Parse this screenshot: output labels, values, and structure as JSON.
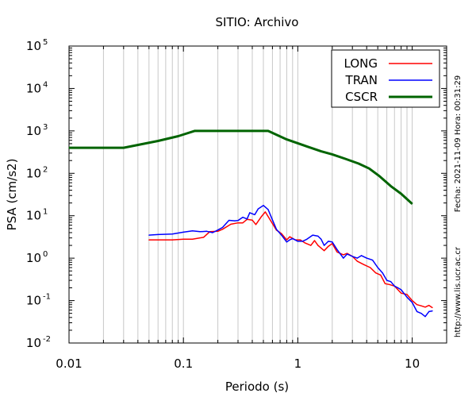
{
  "chart_data": {
    "type": "line",
    "title": "SITIO: Archivo",
    "xlabel": "Periodo (s)",
    "ylabel": "PSA (cm/s2)",
    "xscale": "log",
    "yscale": "log",
    "xlim": [
      0.01,
      20
    ],
    "ylim": [
      0.01,
      100000
    ],
    "x_tick_labels": [
      {
        "value": 0.01,
        "label": "0.01"
      },
      {
        "value": 0.1,
        "label": "0.1"
      },
      {
        "value": 1,
        "label": "1"
      },
      {
        "value": 10,
        "label": "10"
      }
    ],
    "y_tick_labels": [
      {
        "value": 0.01,
        "base": "10",
        "exp": "-2"
      },
      {
        "value": 0.1,
        "base": "10",
        "exp": "-1"
      },
      {
        "value": 1,
        "base": "10",
        "exp": "0"
      },
      {
        "value": 10,
        "base": "10",
        "exp": "1"
      },
      {
        "value": 100,
        "base": "10",
        "exp": "2"
      },
      {
        "value": 1000,
        "base": "10",
        "exp": "3"
      },
      {
        "value": 10000,
        "base": "10",
        "exp": "4"
      },
      {
        "value": 100000,
        "base": "10",
        "exp": "5"
      }
    ],
    "grid": true,
    "legend_position": "top-right",
    "side_text": "Fecha: 2021-11-09  Hora: 00:31:29",
    "url_text": "http://www.lis.ucr.ac.cr",
    "series": [
      {
        "name": "LONG",
        "color": "#ff0000",
        "stroke": 1.5,
        "points": [
          [
            0.05,
            2.7
          ],
          [
            0.06,
            2.7
          ],
          [
            0.08,
            2.7
          ],
          [
            0.1,
            2.8
          ],
          [
            0.12,
            2.8
          ],
          [
            0.15,
            3.1
          ],
          [
            0.17,
            4.2
          ],
          [
            0.2,
            4.3
          ],
          [
            0.22,
            4.8
          ],
          [
            0.26,
            6.3
          ],
          [
            0.3,
            6.8
          ],
          [
            0.33,
            6.8
          ],
          [
            0.36,
            8.2
          ],
          [
            0.4,
            7.9
          ],
          [
            0.43,
            6.2
          ],
          [
            0.48,
            9.5
          ],
          [
            0.52,
            12.3
          ],
          [
            0.58,
            7.6
          ],
          [
            0.65,
            4.6
          ],
          [
            0.72,
            3.8
          ],
          [
            0.8,
            2.7
          ],
          [
            0.85,
            3.2
          ],
          [
            0.95,
            2.7
          ],
          [
            1.05,
            2.7
          ],
          [
            1.15,
            2.3
          ],
          [
            1.3,
            2.0
          ],
          [
            1.4,
            2.6
          ],
          [
            1.5,
            2.0
          ],
          [
            1.7,
            1.5
          ],
          [
            1.85,
            1.9
          ],
          [
            2.0,
            2.2
          ],
          [
            2.2,
            1.4
          ],
          [
            2.5,
            1.2
          ],
          [
            2.7,
            1.3
          ],
          [
            3.0,
            1.1
          ],
          [
            3.3,
            0.85
          ],
          [
            3.8,
            0.7
          ],
          [
            4.3,
            0.6
          ],
          [
            4.8,
            0.45
          ],
          [
            5.3,
            0.4
          ],
          [
            5.8,
            0.25
          ],
          [
            6.3,
            0.24
          ],
          [
            7.0,
            0.22
          ],
          [
            8.0,
            0.15
          ],
          [
            9.0,
            0.14
          ],
          [
            10.0,
            0.1
          ],
          [
            11.0,
            0.08
          ],
          [
            12.0,
            0.075
          ],
          [
            13.0,
            0.07
          ],
          [
            14.0,
            0.077
          ],
          [
            15.0,
            0.068
          ]
        ]
      },
      {
        "name": "TRAN",
        "color": "#0000ff",
        "stroke": 1.5,
        "points": [
          [
            0.05,
            3.5
          ],
          [
            0.06,
            3.6
          ],
          [
            0.08,
            3.7
          ],
          [
            0.1,
            4.1
          ],
          [
            0.12,
            4.4
          ],
          [
            0.14,
            4.2
          ],
          [
            0.16,
            4.3
          ],
          [
            0.18,
            4.0
          ],
          [
            0.2,
            4.6
          ],
          [
            0.22,
            5.3
          ],
          [
            0.25,
            7.8
          ],
          [
            0.28,
            7.6
          ],
          [
            0.3,
            7.7
          ],
          [
            0.33,
            9.2
          ],
          [
            0.36,
            8.4
          ],
          [
            0.38,
            11.8
          ],
          [
            0.42,
            10.6
          ],
          [
            0.45,
            14.5
          ],
          [
            0.5,
            17.5
          ],
          [
            0.55,
            14.0
          ],
          [
            0.6,
            8.0
          ],
          [
            0.65,
            4.8
          ],
          [
            0.72,
            3.5
          ],
          [
            0.8,
            2.4
          ],
          [
            0.85,
            2.7
          ],
          [
            0.9,
            2.9
          ],
          [
            1.0,
            2.5
          ],
          [
            1.1,
            2.5
          ],
          [
            1.2,
            2.8
          ],
          [
            1.35,
            3.5
          ],
          [
            1.5,
            3.3
          ],
          [
            1.6,
            2.8
          ],
          [
            1.7,
            2.0
          ],
          [
            1.85,
            2.5
          ],
          [
            2.0,
            2.4
          ],
          [
            2.2,
            1.6
          ],
          [
            2.5,
            1.0
          ],
          [
            2.7,
            1.25
          ],
          [
            3.0,
            1.1
          ],
          [
            3.3,
            1.0
          ],
          [
            3.6,
            1.15
          ],
          [
            4.0,
            1.0
          ],
          [
            4.5,
            0.9
          ],
          [
            5.0,
            0.6
          ],
          [
            5.5,
            0.45
          ],
          [
            6.0,
            0.3
          ],
          [
            6.5,
            0.28
          ],
          [
            7.0,
            0.22
          ],
          [
            7.5,
            0.2
          ],
          [
            8.0,
            0.18
          ],
          [
            9.0,
            0.12
          ],
          [
            10.0,
            0.09
          ],
          [
            11.0,
            0.055
          ],
          [
            12.0,
            0.05
          ],
          [
            13.0,
            0.042
          ],
          [
            14.0,
            0.055
          ],
          [
            15.0,
            0.057
          ]
        ]
      },
      {
        "name": "CSCR",
        "color": "#006400",
        "stroke": 3,
        "points": [
          [
            0.01,
            400
          ],
          [
            0.03,
            400
          ],
          [
            0.06,
            580
          ],
          [
            0.09,
            750
          ],
          [
            0.125,
            1000
          ],
          [
            0.55,
            1000
          ],
          [
            0.8,
            630
          ],
          [
            1.2,
            430
          ],
          [
            1.6,
            330
          ],
          [
            2.0,
            280
          ],
          [
            2.6,
            220
          ],
          [
            3.4,
            170
          ],
          [
            4.2,
            130
          ],
          [
            5.2,
            85
          ],
          [
            6.5,
            50
          ],
          [
            8.0,
            33
          ],
          [
            10.0,
            19
          ]
        ]
      }
    ]
  }
}
